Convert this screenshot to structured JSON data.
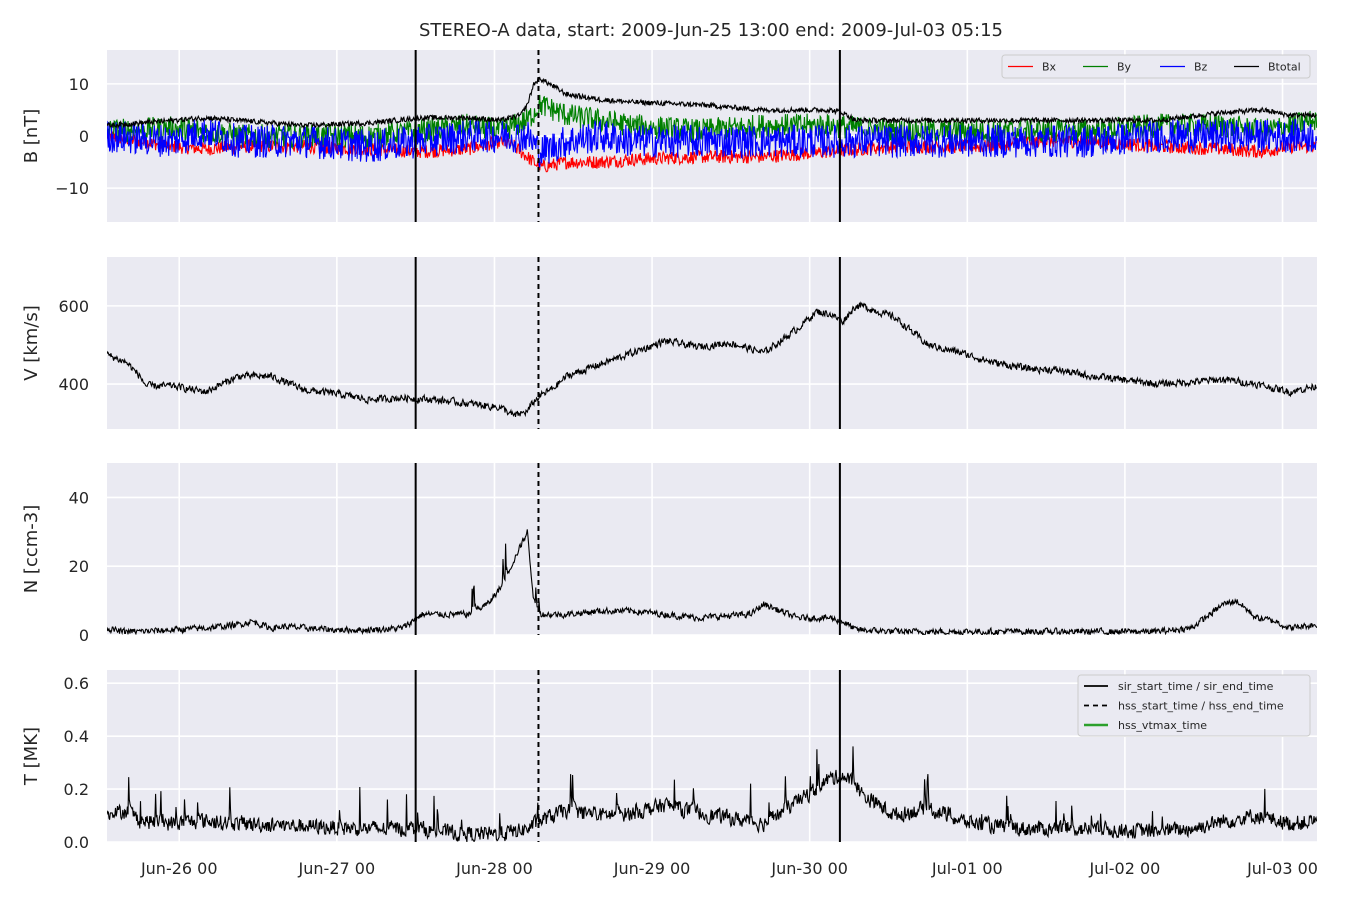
{
  "title": "STEREO-A data, start: 2009-Jun-25 13:00  end: 2009-Jul-03 05:15",
  "chart_data": [
    {
      "type": "line",
      "ylabel": "B [nT]",
      "xlim_hours": [
        0,
        184.25
      ],
      "ylim": [
        -16.5,
        16.5
      ],
      "yticks": [
        10,
        0,
        -10
      ],
      "ytick_labels": [
        "10",
        "0",
        "−10"
      ],
      "legend": "top-right",
      "grid": true,
      "series": [
        {
          "name": "Bx",
          "color": "#ff0000",
          "anchors_hours": [
            0,
            5,
            10,
            15,
            20,
            30,
            40,
            48,
            55,
            60,
            62,
            64,
            66,
            70,
            75,
            80,
            90,
            100,
            110,
            120,
            125,
            132,
            135,
            140,
            150,
            160,
            170,
            176,
            180,
            184.25
          ],
          "anchors_values": [
            0,
            -1,
            -2,
            -2.5,
            -2,
            -2,
            -2.5,
            -3,
            -2.5,
            -1,
            -2,
            -4,
            -6,
            -5,
            -5,
            -4.5,
            -4,
            -4,
            -3,
            -2,
            -2,
            -2,
            -2,
            -1,
            -1,
            -2,
            -2.5,
            -3,
            -2,
            -2
          ],
          "noise": 1.3
        },
        {
          "name": "By",
          "color": "#008000",
          "anchors_hours": [
            0,
            10,
            15,
            20,
            30,
            40,
            48,
            55,
            60,
            64,
            66,
            70,
            75,
            80,
            90,
            100,
            110,
            120,
            125,
            132,
            135,
            140,
            150,
            160,
            170,
            176,
            180,
            184.25
          ],
          "anchors_values": [
            1,
            1.5,
            1,
            0,
            0,
            0,
            1,
            2,
            1,
            3,
            6,
            4,
            3,
            2,
            1,
            2,
            2,
            1,
            1,
            1,
            1,
            1,
            1,
            2,
            2,
            1,
            2,
            3
          ],
          "noise": 2.3
        },
        {
          "name": "Bz",
          "color": "#0000ff",
          "anchors_hours": [
            0,
            10,
            15,
            20,
            30,
            40,
            48,
            55,
            60,
            64,
            66,
            70,
            75,
            80,
            90,
            100,
            110,
            120,
            125,
            132,
            135,
            140,
            150,
            160,
            170,
            176,
            180,
            184.25
          ],
          "anchors_values": [
            0,
            -1,
            1,
            -1,
            -1,
            -2,
            -1,
            0,
            0,
            0,
            -3,
            -1,
            0,
            -1,
            -1,
            -1,
            -1,
            -1,
            -1,
            -1,
            -1,
            -1,
            -1,
            0,
            0,
            0,
            0,
            0
          ],
          "noise": 3.2
        },
        {
          "name": "Btotal",
          "color": "#000000",
          "anchors_hours": [
            0,
            5,
            10,
            15,
            20,
            25,
            30,
            40,
            48,
            55,
            60,
            63,
            64,
            65,
            66,
            68,
            70,
            75,
            80,
            90,
            100,
            110,
            112,
            114,
            120,
            125,
            130,
            135,
            140,
            150,
            160,
            170,
            176,
            180,
            184.25
          ],
          "anchors_values": [
            2,
            2.5,
            3,
            3.5,
            3,
            2.5,
            2,
            2.5,
            3.5,
            3.5,
            3,
            4,
            6,
            10,
            11,
            9.5,
            8,
            7,
            6.5,
            6,
            5,
            5,
            4.5,
            3,
            3,
            3,
            3,
            3,
            3,
            3,
            3,
            4.5,
            5,
            4,
            4
          ],
          "noise": 0.5
        }
      ]
    },
    {
      "type": "line",
      "ylabel": "V [km/s]",
      "xlim_hours": [
        0,
        184.25
      ],
      "ylim": [
        285,
        725
      ],
      "yticks": [
        600,
        400
      ],
      "ytick_labels": [
        "600",
        "400"
      ],
      "grid": true,
      "series": [
        {
          "color": "#000000",
          "anchors_hours": [
            0,
            3,
            5,
            6,
            10,
            15,
            20,
            25,
            30,
            35,
            40,
            45,
            50,
            55,
            60,
            62,
            64,
            65,
            66,
            68,
            70,
            75,
            80,
            85,
            90,
            95,
            100,
            105,
            108,
            110,
            112,
            114,
            115,
            120,
            125,
            130,
            135,
            140,
            145,
            150,
            155,
            160,
            165,
            170,
            175,
            180,
            184.25
          ],
          "anchors_values": [
            475,
            455,
            420,
            395,
            395,
            380,
            420,
            420,
            385,
            375,
            360,
            365,
            360,
            350,
            340,
            318,
            330,
            355,
            370,
            390,
            420,
            450,
            480,
            510,
            495,
            505,
            480,
            540,
            585,
            580,
            560,
            600,
            600,
            570,
            500,
            480,
            455,
            440,
            435,
            420,
            410,
            400,
            405,
            412,
            400,
            380,
            395
          ],
          "noise": 8
        }
      ]
    },
    {
      "type": "line",
      "ylabel": "N [ccm-3]",
      "xlim_hours": [
        0,
        184.25
      ],
      "ylim": [
        0,
        50
      ],
      "yticks": [
        40,
        20,
        0
      ],
      "ytick_labels": [
        "40",
        "20",
        "0"
      ],
      "grid": true,
      "series": [
        {
          "color": "#000000",
          "anchors_hours": [
            0,
            2,
            5,
            10,
            15,
            20,
            22,
            25,
            27,
            30,
            35,
            40,
            45,
            48,
            50,
            55,
            58,
            60,
            62,
            63,
            64,
            65,
            66,
            70,
            75,
            80,
            90,
            98,
            100,
            105,
            110,
            112,
            114,
            120,
            130,
            140,
            150,
            160,
            165,
            168,
            170,
            172,
            175,
            178,
            180,
            184.25
          ],
          "anchors_values": [
            2,
            1,
            1,
            1.5,
            2,
            3,
            4,
            2,
            2.5,
            2,
            1.5,
            1.5,
            2,
            6,
            6,
            6,
            9,
            14,
            22,
            26,
            30,
            10,
            6,
            6,
            7,
            7,
            5,
            6,
            9,
            5,
            5,
            4,
            1.5,
            1,
            1,
            1,
            1,
            1,
            2,
            6,
            9,
            10,
            5,
            4,
            2,
            3
          ],
          "noise": 0.8
        }
      ]
    },
    {
      "type": "line",
      "ylabel": "T [MK]",
      "xlabel": "",
      "xlim_hours": [
        0,
        184.25
      ],
      "ylim": [
        0,
        0.65
      ],
      "yticks": [
        0.6,
        0.4,
        0.2,
        0.0
      ],
      "ytick_labels": [
        "0.6",
        "0.4",
        "0.2",
        "0.0"
      ],
      "grid": true,
      "legend": "top-right",
      "legend_entries": [
        {
          "label": "sir_start_time / sir_end_time",
          "style": "solid",
          "color": "#000000"
        },
        {
          "label": "hss_start_time / hss_end_time",
          "style": "dashed",
          "color": "#000000"
        },
        {
          "label": "hss_vtmax_time",
          "style": "solid",
          "color": "#2ca02c"
        }
      ],
      "series": [
        {
          "color": "#000000",
          "anchors_hours": [
            0,
            3,
            5,
            10,
            15,
            20,
            30,
            40,
            45,
            48,
            50,
            55,
            60,
            64,
            66,
            68,
            70,
            75,
            80,
            85,
            90,
            95,
            100,
            105,
            108,
            110,
            112,
            114,
            115,
            120,
            125,
            130,
            135,
            140,
            150,
            160,
            165,
            170,
            175,
            180,
            184.25
          ],
          "anchors_values": [
            0.1,
            0.12,
            0.08,
            0.07,
            0.08,
            0.07,
            0.06,
            0.05,
            0.05,
            0.05,
            0.04,
            0.03,
            0.03,
            0.05,
            0.08,
            0.1,
            0.12,
            0.1,
            0.11,
            0.14,
            0.11,
            0.09,
            0.07,
            0.15,
            0.2,
            0.24,
            0.25,
            0.22,
            0.18,
            0.1,
            0.13,
            0.08,
            0.06,
            0.05,
            0.05,
            0.04,
            0.05,
            0.08,
            0.1,
            0.07,
            0.08
          ],
          "noise": 0.025
        }
      ]
    }
  ],
  "x_axis": {
    "tick_hours": [
      11,
      35,
      59,
      83,
      107,
      131,
      155,
      179
    ],
    "tick_labels": [
      "Jun-26 00",
      "Jun-27 00",
      "Jun-28 00",
      "Jun-29 00",
      "Jun-30 00",
      "Jul-01 00",
      "Jul-02 00",
      "Jul-03 00"
    ]
  },
  "event_lines": {
    "sir_start_hours": 47.0,
    "hss_start_hours": 65.7,
    "sir_end_hours": 111.6
  },
  "colors": {
    "panel_background": "#eaeaf2",
    "grid": "#ffffff",
    "Bx": "#ff0000",
    "By": "#008000",
    "Bz": "#0000ff",
    "Btotal": "#000000",
    "hss_vtmax": "#2ca02c"
  }
}
